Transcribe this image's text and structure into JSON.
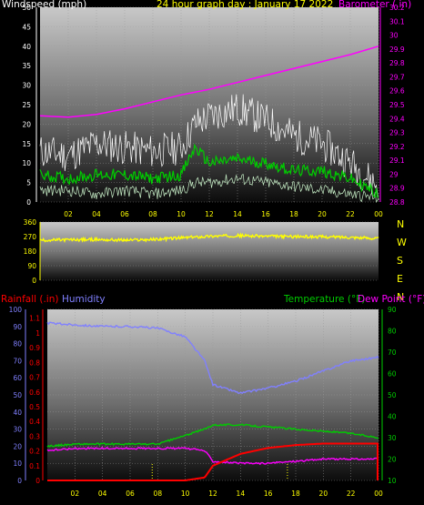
{
  "header": {
    "left": "Windspeed (mph)",
    "center": "24 hour graph day : January 17 2022",
    "right": "Barometer (.in)"
  },
  "colors": {
    "windspeed_label": "#ffffff",
    "title": "#ffff00",
    "barometer": "#ff00ff",
    "gust": "#ffffff",
    "avg": "#00cc00",
    "minwind": "#c8f0c8",
    "direction": "#ffff00",
    "rainfall": "#ff0000",
    "humidity": "#8080ff",
    "temperature": "#00cc00",
    "dewpoint": "#ff00ff",
    "axis_text": "#ffff00"
  },
  "x_ticks": [
    "02",
    "04",
    "06",
    "08",
    "10",
    "12",
    "14",
    "16",
    "18",
    "20",
    "22",
    "00"
  ],
  "direction_letters": [
    "N",
    "W",
    "S",
    "E",
    "N"
  ],
  "bottom_labels": {
    "rainfall": "Rainfall (.in)",
    "humidity": "Humidity",
    "temperature": "Temperature (°F)",
    "dewpoint": "Dew Point (°F)"
  },
  "chart_data": [
    {
      "type": "line",
      "title": "24 hour graph day : January 17 2022",
      "y_left_label": "Windspeed (mph)",
      "y_left_ticks": [
        0,
        5,
        10,
        15,
        20,
        25,
        30,
        35,
        40,
        45,
        50
      ],
      "y_left_range": [
        0,
        50
      ],
      "y_right_label": "Barometer (.in)",
      "y_right_ticks": [
        28.8,
        28.9,
        29.0,
        29.1,
        29.2,
        29.3,
        29.4,
        29.5,
        29.6,
        29.7,
        29.8,
        29.9,
        30.0,
        30.1,
        30.2
      ],
      "y_right_range": [
        28.8,
        30.2
      ],
      "x_hours": [
        0,
        2,
        4,
        6,
        8,
        10,
        11,
        12,
        14,
        16,
        18,
        20,
        22,
        24
      ],
      "series": [
        {
          "name": "Barometer (.in)",
          "axis": "right",
          "values": [
            29.42,
            29.41,
            29.43,
            29.47,
            29.52,
            29.57,
            29.59,
            29.61,
            29.66,
            29.71,
            29.76,
            29.81,
            29.86,
            29.92
          ]
        },
        {
          "axis": "left",
          "values": [
            13,
            12,
            15,
            14,
            13,
            14,
            20,
            22,
            24,
            21,
            17,
            15,
            10,
            4
          ]
        },
        {
          "axis": "left",
          "values": [
            7,
            6,
            7,
            7,
            6,
            7,
            14,
            10,
            11,
            10,
            8,
            8,
            6,
            2
          ]
        },
        {
          "axis": "left",
          "values": [
            3,
            3,
            2,
            3,
            2,
            3,
            5,
            5,
            6,
            5,
            4,
            3,
            2,
            1
          ]
        }
      ]
    },
    {
      "type": "line",
      "y_ticks": [
        0,
        90,
        180,
        270,
        360
      ],
      "y_range": [
        0,
        360
      ],
      "x_hours": [
        0,
        2,
        4,
        6,
        8,
        10,
        12,
        14,
        16,
        18,
        20,
        22,
        24
      ],
      "series": [
        {
          "values": [
            248,
            250,
            252,
            248,
            252,
            262,
            272,
            276,
            272,
            270,
            268,
            266,
            258
          ]
        }
      ]
    },
    {
      "type": "line",
      "y_left_ticks": [
        0,
        10,
        20,
        30,
        40,
        50,
        60,
        70,
        80,
        90,
        100
      ],
      "y_rain_ticks": [
        0,
        0.1,
        0.2,
        0.3,
        0.4,
        0.5,
        0.6,
        0.7,
        0.8,
        0.9,
        1.0,
        1.1
      ],
      "y_right_ticks": [
        10,
        20,
        30,
        40,
        50,
        60,
        70,
        80,
        90
      ],
      "x_hours": [
        0,
        2,
        4,
        6,
        8,
        10,
        11.4,
        12,
        14,
        16,
        18,
        20,
        22,
        24
      ],
      "series": [
        {
          "name": "Humidity",
          "values": [
            92,
            91,
            90,
            90,
            89,
            84,
            70,
            56,
            51,
            54,
            58,
            64,
            70,
            72
          ]
        },
        {
          "name": "Temperature (°F)",
          "values": [
            26,
            27,
            27,
            27,
            27,
            31,
            34,
            36,
            36,
            35,
            34,
            33,
            32,
            30
          ]
        },
        {
          "name": "Dew Point (°F)",
          "values": [
            24,
            25,
            25,
            25,
            25,
            25,
            24,
            19,
            18,
            18,
            19,
            20,
            20,
            20
          ]
        },
        {
          "name": "Rainfall (.in)",
          "values": [
            0,
            0,
            0,
            0,
            0,
            0,
            0.02,
            0.1,
            0.18,
            0.22,
            0.24,
            0.25,
            0.25,
            0.25
          ]
        }
      ]
    }
  ]
}
